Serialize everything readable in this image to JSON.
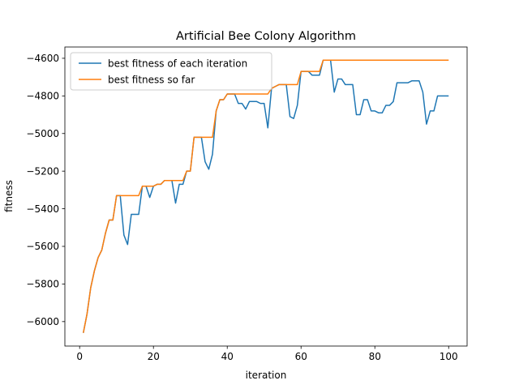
{
  "chart_data": {
    "type": "line",
    "title": "Artificial Bee Colony Algorithm",
    "xlabel": "iteration",
    "ylabel": "fitness",
    "xlim": [
      -4,
      105
    ],
    "ylim": [
      -6130,
      -4540
    ],
    "xticks": [
      0,
      20,
      40,
      60,
      80,
      100
    ],
    "yticks": [
      -6000,
      -5800,
      -5600,
      -5400,
      -5200,
      -5000,
      -4800,
      -4600
    ],
    "grid": false,
    "legend_position": "top-left",
    "series": [
      {
        "name": "best fitness of each iteration",
        "color": "#1f77b4",
        "x": [
          1,
          2,
          3,
          4,
          5,
          6,
          7,
          8,
          9,
          10,
          11,
          12,
          13,
          14,
          15,
          16,
          17,
          18,
          19,
          20,
          21,
          22,
          23,
          24,
          25,
          26,
          27,
          28,
          29,
          30,
          31,
          32,
          33,
          34,
          35,
          36,
          37,
          38,
          39,
          40,
          41,
          42,
          43,
          44,
          45,
          46,
          47,
          48,
          49,
          50,
          51,
          52,
          53,
          54,
          55,
          56,
          57,
          58,
          59,
          60,
          61,
          62,
          63,
          64,
          65,
          66,
          67,
          68,
          69,
          70,
          71,
          72,
          73,
          74,
          75,
          76,
          77,
          78,
          79,
          80,
          81,
          82,
          83,
          84,
          85,
          86,
          87,
          88,
          89,
          90,
          91,
          92,
          93,
          94,
          95,
          96,
          97,
          98,
          99,
          100
        ],
        "values": [
          -6060,
          -5960,
          -5820,
          -5730,
          -5660,
          -5620,
          -5530,
          -5460,
          -5460,
          -5330,
          -5330,
          -5540,
          -5590,
          -5430,
          -5430,
          -5430,
          -5280,
          -5280,
          -5340,
          -5280,
          -5270,
          -5270,
          -5250,
          -5250,
          -5250,
          -5370,
          -5270,
          -5270,
          -5200,
          -5200,
          -5020,
          -5020,
          -5020,
          -5150,
          -5190,
          -5110,
          -4880,
          -4820,
          -4820,
          -4790,
          -4790,
          -4790,
          -4840,
          -4840,
          -4870,
          -4830,
          -4830,
          -4830,
          -4840,
          -4840,
          -4970,
          -4760,
          -4750,
          -4740,
          -4740,
          -4740,
          -4910,
          -4920,
          -4850,
          -4670,
          -4670,
          -4670,
          -4690,
          -4690,
          -4690,
          -4610,
          -4610,
          -4610,
          -4780,
          -4710,
          -4710,
          -4740,
          -4740,
          -4740,
          -4900,
          -4900,
          -4820,
          -4820,
          -4880,
          -4880,
          -4890,
          -4890,
          -4850,
          -4850,
          -4830,
          -4730,
          -4730,
          -4730,
          -4730,
          -4720,
          -4720,
          -4720,
          -4780,
          -4950,
          -4880,
          -4880,
          -4800,
          -4800,
          -4800,
          -4800
        ]
      },
      {
        "name": "best fitness so far",
        "color": "#ff7f0e",
        "x": [
          1,
          2,
          3,
          4,
          5,
          6,
          7,
          8,
          9,
          10,
          11,
          12,
          13,
          14,
          15,
          16,
          17,
          18,
          19,
          20,
          21,
          22,
          23,
          24,
          25,
          26,
          27,
          28,
          29,
          30,
          31,
          32,
          33,
          34,
          35,
          36,
          37,
          38,
          39,
          40,
          41,
          42,
          43,
          44,
          45,
          46,
          47,
          48,
          49,
          50,
          51,
          52,
          53,
          54,
          55,
          56,
          57,
          58,
          59,
          60,
          61,
          62,
          63,
          64,
          65,
          66,
          67,
          68,
          69,
          70,
          71,
          72,
          73,
          74,
          75,
          76,
          77,
          78,
          79,
          80,
          81,
          82,
          83,
          84,
          85,
          86,
          87,
          88,
          89,
          90,
          91,
          92,
          93,
          94,
          95,
          96,
          97,
          98,
          99,
          100
        ],
        "values": [
          -6060,
          -5960,
          -5820,
          -5730,
          -5660,
          -5620,
          -5530,
          -5460,
          -5460,
          -5330,
          -5330,
          -5330,
          -5330,
          -5330,
          -5330,
          -5330,
          -5280,
          -5280,
          -5280,
          -5280,
          -5270,
          -5270,
          -5250,
          -5250,
          -5250,
          -5250,
          -5250,
          -5250,
          -5200,
          -5200,
          -5020,
          -5020,
          -5020,
          -5020,
          -5020,
          -5020,
          -4880,
          -4820,
          -4820,
          -4790,
          -4790,
          -4790,
          -4790,
          -4790,
          -4790,
          -4790,
          -4790,
          -4790,
          -4790,
          -4790,
          -4790,
          -4760,
          -4750,
          -4740,
          -4740,
          -4740,
          -4740,
          -4740,
          -4740,
          -4670,
          -4670,
          -4670,
          -4670,
          -4670,
          -4670,
          -4610,
          -4610,
          -4610,
          -4610,
          -4610,
          -4610,
          -4610,
          -4610,
          -4610,
          -4610,
          -4610,
          -4610,
          -4610,
          -4610,
          -4610,
          -4610,
          -4610,
          -4610,
          -4610,
          -4610,
          -4610,
          -4610,
          -4610,
          -4610,
          -4610,
          -4610,
          -4610,
          -4610,
          -4610,
          -4610,
          -4610,
          -4610,
          -4610,
          -4610,
          -4610
        ]
      }
    ]
  }
}
